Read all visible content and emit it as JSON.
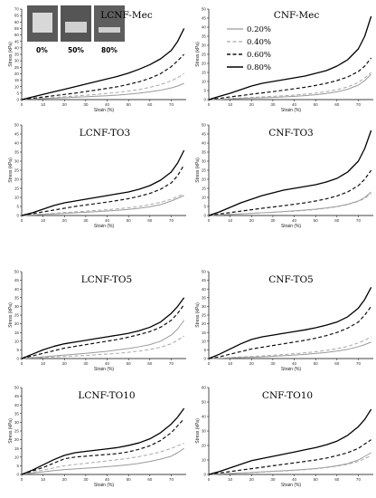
{
  "figure": {
    "inset": {
      "labels": [
        "0%",
        "50%",
        "80%"
      ]
    }
  },
  "chart_data": [
    {
      "type": "line",
      "title": "LCNF-Mec",
      "xlabel": "Strain (%)",
      "ylabel": "Stress (kPa)",
      "xlim": [
        0,
        77
      ],
      "ylim": [
        0,
        70
      ],
      "xticks": [
        0,
        10,
        20,
        30,
        40,
        50,
        60,
        70
      ],
      "yticks": [
        0,
        5,
        10,
        15,
        20,
        25,
        30,
        35,
        40,
        45,
        50,
        55,
        60,
        65,
        70
      ],
      "x": [
        0,
        5,
        10,
        15,
        20,
        25,
        30,
        35,
        40,
        45,
        50,
        55,
        60,
        65,
        70,
        73,
        76
      ],
      "series": [
        {
          "name": "0.20%",
          "style": "solid-gray",
          "values": [
            0,
            0.4,
            0.8,
            1.1,
            1.5,
            1.8,
            2.2,
            2.6,
            3.0,
            3.5,
            4.2,
            5.0,
            6.0,
            7.3,
            9.0,
            10.5,
            12.5
          ]
        },
        {
          "name": "0.40%",
          "style": "dash-gray",
          "values": [
            0,
            0.6,
            1.2,
            1.7,
            2.2,
            2.8,
            3.4,
            4.0,
            4.8,
            5.6,
            6.6,
            7.8,
            9.5,
            11.5,
            14.5,
            17,
            20
          ]
        },
        {
          "name": "0.60%",
          "style": "dash-black",
          "values": [
            0,
            1.0,
            2.0,
            3.0,
            4.0,
            5.0,
            6.2,
            7.4,
            8.7,
            10.0,
            11.8,
            13.8,
            16.5,
            20.0,
            25.5,
            30,
            35
          ]
        },
        {
          "name": "0.80%",
          "style": "solid-black",
          "values": [
            0,
            2.0,
            4.0,
            6.0,
            8.0,
            10.0,
            12.0,
            14.0,
            16.0,
            18.0,
            20.5,
            23.5,
            27.0,
            31.5,
            38.0,
            45,
            55
          ]
        }
      ]
    },
    {
      "type": "line",
      "title": "CNF-Mec",
      "xlabel": "Strain (%)",
      "ylabel": "Stress (kPa)",
      "xlim": [
        0,
        77
      ],
      "ylim": [
        0,
        50
      ],
      "xticks": [
        0,
        10,
        20,
        30,
        40,
        50,
        60,
        70
      ],
      "yticks": [
        0,
        5,
        10,
        15,
        20,
        25,
        30,
        35,
        40,
        45,
        50
      ],
      "legend": [
        "0.20%",
        "0.40%",
        "0.60%",
        "0.80%"
      ],
      "x": [
        0,
        5,
        10,
        15,
        20,
        25,
        30,
        35,
        40,
        45,
        50,
        55,
        60,
        65,
        70,
        73,
        76
      ],
      "series": [
        {
          "name": "0.20%",
          "style": "solid-gray",
          "values": [
            0,
            0.2,
            0.4,
            0.6,
            0.8,
            1.0,
            1.2,
            1.5,
            1.8,
            2.2,
            2.7,
            3.4,
            4.3,
            5.7,
            8.0,
            10.5,
            14
          ]
        },
        {
          "name": "0.40%",
          "style": "dash-gray",
          "values": [
            0,
            0.3,
            0.6,
            0.9,
            1.2,
            1.5,
            1.8,
            2.1,
            2.5,
            3.0,
            3.6,
            4.4,
            5.5,
            7.0,
            9.5,
            12,
            15
          ]
        },
        {
          "name": "0.60%",
          "style": "dash-black",
          "values": [
            0,
            0.7,
            1.5,
            2.2,
            3.0,
            3.7,
            4.4,
            5.2,
            6.0,
            6.8,
            7.8,
            9.0,
            10.5,
            12.5,
            15.5,
            18.5,
            23
          ]
        },
        {
          "name": "0.80%",
          "style": "solid-black",
          "values": [
            0,
            1.8,
            3.5,
            5.5,
            7.5,
            9.0,
            10.0,
            11.0,
            12.0,
            13.0,
            14.5,
            16.0,
            18.5,
            22.0,
            28.0,
            35,
            46
          ]
        }
      ]
    },
    {
      "type": "line",
      "title": "LCNF-TO3",
      "xlabel": "Strain (%)",
      "ylabel": "Stress (kPa)",
      "xlim": [
        0,
        77
      ],
      "ylim": [
        0,
        50
      ],
      "xticks": [
        0,
        10,
        20,
        30,
        40,
        50,
        60,
        70
      ],
      "yticks": [
        0,
        5,
        10,
        15,
        20,
        25,
        30,
        35,
        40,
        45,
        50
      ],
      "x": [
        0,
        5,
        10,
        15,
        20,
        25,
        30,
        35,
        40,
        45,
        50,
        55,
        60,
        65,
        70,
        73,
        76
      ],
      "series": [
        {
          "name": "0.20%",
          "style": "solid-gray",
          "values": [
            0,
            0.3,
            0.6,
            0.9,
            1.2,
            1.5,
            1.8,
            2.1,
            2.5,
            2.9,
            3.4,
            4.0,
            4.8,
            6.0,
            8.0,
            9.5,
            11
          ]
        },
        {
          "name": "0.40%",
          "style": "dash-gray",
          "values": [
            0,
            0.4,
            0.8,
            1.2,
            1.6,
            2.0,
            2.4,
            2.8,
            3.2,
            3.7,
            4.3,
            5.0,
            6.0,
            7.3,
            9.0,
            10.5,
            12
          ]
        },
        {
          "name": "0.60%",
          "style": "dash-black",
          "values": [
            0,
            1.0,
            2.0,
            3.0,
            4.0,
            5.0,
            5.8,
            6.6,
            7.4,
            8.3,
            9.3,
            10.6,
            12.2,
            14.5,
            18.0,
            22,
            28
          ]
        },
        {
          "name": "0.80%",
          "style": "solid-black",
          "values": [
            0,
            1.5,
            3.5,
            5.5,
            7.0,
            8.0,
            9.0,
            10.0,
            11.0,
            12.0,
            13.0,
            14.5,
            16.5,
            19.5,
            24.0,
            29,
            36
          ]
        }
      ]
    },
    {
      "type": "line",
      "title": "CNF-TO3",
      "xlabel": "Strain (%)",
      "ylabel": "Stress (kPa)",
      "xlim": [
        0,
        77
      ],
      "ylim": [
        0,
        50
      ],
      "xticks": [
        0,
        10,
        20,
        30,
        40,
        50,
        60,
        70
      ],
      "yticks": [
        0,
        5,
        10,
        15,
        20,
        25,
        30,
        35,
        40,
        45,
        50
      ],
      "x": [
        0,
        5,
        10,
        15,
        20,
        25,
        30,
        35,
        40,
        45,
        50,
        55,
        60,
        65,
        70,
        73,
        76
      ],
      "series": [
        {
          "name": "0.20%",
          "style": "solid-gray",
          "values": [
            0,
            0.3,
            0.6,
            0.9,
            1.2,
            1.5,
            1.8,
            2.2,
            2.6,
            3.0,
            3.5,
            4.2,
            5.0,
            6.2,
            8.0,
            10,
            13
          ]
        },
        {
          "name": "0.40%",
          "style": "dash-gray",
          "values": [
            0,
            0.3,
            0.6,
            0.9,
            1.2,
            1.5,
            1.8,
            2.1,
            2.4,
            2.8,
            3.3,
            4.0,
            4.8,
            6.0,
            7.8,
            9.5,
            12
          ]
        },
        {
          "name": "0.60%",
          "style": "dash-black",
          "values": [
            0,
            0.8,
            1.6,
            2.4,
            3.2,
            4.0,
            4.7,
            5.4,
            6.2,
            7.0,
            8.0,
            9.2,
            10.8,
            13.0,
            16.5,
            20,
            25
          ]
        },
        {
          "name": "0.80%",
          "style": "solid-black",
          "values": [
            0,
            2.0,
            4.5,
            7.0,
            9.0,
            11.0,
            12.5,
            14.0,
            15.0,
            16.0,
            17.0,
            18.5,
            20.5,
            24.0,
            30.0,
            37,
            47
          ]
        }
      ]
    },
    {
      "type": "line",
      "title": "LCNF-TO5",
      "xlabel": "Strain (%)",
      "ylabel": "Stress (kPa)",
      "xlim": [
        0,
        77
      ],
      "ylim": [
        0,
        50
      ],
      "xticks": [
        0,
        10,
        20,
        30,
        40,
        50,
        60,
        70
      ],
      "yticks": [
        0,
        5,
        10,
        15,
        20,
        25,
        30,
        35,
        40,
        45,
        50
      ],
      "x": [
        0,
        5,
        10,
        15,
        20,
        25,
        30,
        35,
        40,
        45,
        50,
        55,
        60,
        65,
        70,
        73,
        76
      ],
      "series": [
        {
          "name": "0.20%",
          "style": "solid-gray",
          "values": [
            0,
            0.5,
            1.0,
            1.5,
            2.0,
            2.5,
            3.0,
            3.6,
            4.2,
            5.0,
            5.8,
            6.8,
            8.0,
            10.0,
            13.5,
            17,
            22
          ]
        },
        {
          "name": "0.40%",
          "style": "dash-gray",
          "values": [
            0,
            0.3,
            0.6,
            0.9,
            1.2,
            1.5,
            1.8,
            2.2,
            2.6,
            3.0,
            3.6,
            4.3,
            5.2,
            6.5,
            8.5,
            10.5,
            13
          ]
        },
        {
          "name": "0.60%",
          "style": "dash-black",
          "values": [
            0,
            1.5,
            3.0,
            4.5,
            6.0,
            7.0,
            8.0,
            9.0,
            10.0,
            11.0,
            12.3,
            13.8,
            15.5,
            18.0,
            22.0,
            26,
            31
          ]
        },
        {
          "name": "0.80%",
          "style": "solid-black",
          "values": [
            0,
            2.5,
            5.0,
            7.0,
            8.5,
            9.5,
            10.5,
            11.5,
            12.5,
            13.5,
            14.5,
            16.0,
            18.0,
            21.0,
            26.0,
            30,
            35
          ]
        }
      ]
    },
    {
      "type": "line",
      "title": "CNF-TO5",
      "xlabel": "Strain (%)",
      "ylabel": "Stress (kPa)",
      "xlim": [
        0,
        77
      ],
      "ylim": [
        0,
        50
      ],
      "xticks": [
        0,
        10,
        20,
        30,
        40,
        50,
        60,
        70
      ],
      "yticks": [
        0,
        5,
        10,
        15,
        20,
        25,
        30,
        35,
        40,
        45,
        50
      ],
      "x": [
        0,
        5,
        10,
        15,
        20,
        25,
        30,
        35,
        40,
        45,
        50,
        55,
        60,
        65,
        70,
        73,
        76
      ],
      "series": [
        {
          "name": "0.20%",
          "style": "solid-gray",
          "values": [
            0,
            0.2,
            0.4,
            0.6,
            0.8,
            1.0,
            1.3,
            1.6,
            2.0,
            2.4,
            2.9,
            3.5,
            4.3,
            5.3,
            6.8,
            8.0,
            9.5
          ]
        },
        {
          "name": "0.40%",
          "style": "dash-gray",
          "values": [
            0,
            0.3,
            0.6,
            0.9,
            1.2,
            1.5,
            1.9,
            2.3,
            2.8,
            3.3,
            3.9,
            4.7,
            5.7,
            7.0,
            9.0,
            10.5,
            12.5
          ]
        },
        {
          "name": "0.60%",
          "style": "dash-black",
          "values": [
            0,
            1.0,
            2.5,
            4.0,
            5.5,
            6.5,
            7.5,
            8.5,
            9.5,
            10.5,
            11.7,
            13.2,
            15.0,
            17.5,
            21.0,
            25,
            30
          ]
        },
        {
          "name": "0.80%",
          "style": "solid-black",
          "values": [
            0,
            2.5,
            5.5,
            8.5,
            11.0,
            12.5,
            13.5,
            14.5,
            15.5,
            16.5,
            17.7,
            19.2,
            21.0,
            24.0,
            29.0,
            34,
            41
          ]
        }
      ]
    },
    {
      "type": "line",
      "title": "LCNF-TO10",
      "xlabel": "Strain (%)",
      "ylabel": "Stress (kPa)",
      "xlim": [
        0,
        77
      ],
      "ylim": [
        0,
        50
      ],
      "xticks": [
        0,
        10,
        20,
        30,
        40,
        50,
        60,
        70
      ],
      "yticks": [
        0,
        5,
        10,
        15,
        20,
        25,
        30,
        35,
        40,
        45,
        50
      ],
      "x": [
        0,
        5,
        10,
        15,
        20,
        25,
        30,
        35,
        40,
        45,
        50,
        55,
        60,
        65,
        70,
        73,
        76
      ],
      "series": [
        {
          "name": "0.20%",
          "style": "solid-gray",
          "values": [
            0,
            0.8,
            1.5,
            2.2,
            2.8,
            3.2,
            3.6,
            4.0,
            4.5,
            5.0,
            5.6,
            6.4,
            7.5,
            8.8,
            10.5,
            12.5,
            15
          ]
        },
        {
          "name": "0.40%",
          "style": "dash-gray",
          "values": [
            0,
            1.2,
            2.5,
            3.8,
            5.0,
            5.7,
            6.4,
            7.1,
            7.8,
            8.5,
            9.3,
            10.3,
            11.5,
            13.0,
            15.0,
            16.5,
            18
          ]
        },
        {
          "name": "0.60%",
          "style": "dash-black",
          "values": [
            0,
            2.0,
            4.0,
            6.5,
            9.0,
            10.0,
            10.5,
            11.0,
            11.5,
            12.0,
            13.0,
            14.5,
            16.5,
            19.5,
            24.0,
            28,
            32
          ]
        },
        {
          "name": "0.80%",
          "style": "solid-black",
          "values": [
            0,
            2.5,
            5.5,
            8.5,
            11.0,
            12.5,
            13.3,
            14.0,
            14.7,
            15.5,
            16.7,
            18.2,
            20.5,
            24.0,
            29.0,
            33,
            38
          ]
        }
      ]
    },
    {
      "type": "line",
      "title": "CNF-TO10",
      "xlabel": "Strain (%)",
      "ylabel": "Stress (kPa)",
      "xlim": [
        0,
        77
      ],
      "ylim": [
        0,
        60
      ],
      "xticks": [
        0,
        10,
        20,
        30,
        40,
        50,
        60,
        70
      ],
      "yticks": [
        0,
        10,
        20,
        30,
        40,
        50,
        60
      ],
      "x": [
        0,
        5,
        10,
        15,
        20,
        25,
        30,
        35,
        40,
        45,
        50,
        55,
        60,
        65,
        70,
        73,
        76
      ],
      "series": [
        {
          "name": "0.20%",
          "style": "solid-gray",
          "values": [
            0,
            0.3,
            0.7,
            1.0,
            1.4,
            1.8,
            2.2,
            2.6,
            3.0,
            3.5,
            4.1,
            4.9,
            6.0,
            7.5,
            10.0,
            12.5,
            15
          ]
        },
        {
          "name": "0.40%",
          "style": "dash-gray",
          "values": [
            0,
            0.3,
            0.6,
            0.9,
            1.2,
            1.6,
            2.0,
            2.4,
            2.8,
            3.3,
            3.9,
            4.7,
            5.7,
            7.0,
            9.0,
            11,
            13
          ]
        },
        {
          "name": "0.60%",
          "style": "dash-black",
          "values": [
            0,
            1.0,
            2.0,
            3.0,
            4.0,
            5.0,
            6.0,
            7.0,
            8.0,
            9.0,
            10.0,
            11.3,
            13.0,
            15.0,
            18.0,
            21,
            24
          ]
        },
        {
          "name": "0.80%",
          "style": "solid-black",
          "values": [
            0,
            2.0,
            4.5,
            7.0,
            9.5,
            11.0,
            12.5,
            14.0,
            15.5,
            17.0,
            18.5,
            20.5,
            23.0,
            27.0,
            33.0,
            38,
            45
          ]
        }
      ]
    }
  ]
}
